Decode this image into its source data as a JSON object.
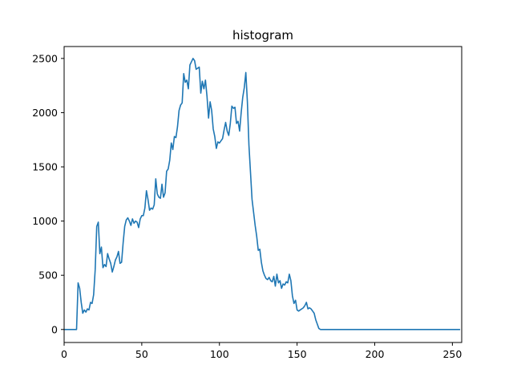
{
  "chart_data": {
    "type": "line",
    "title": "histogram",
    "xlabel": "",
    "ylabel": "",
    "xlim": [
      0,
      256
    ],
    "ylim": [
      -120,
      2610
    ],
    "xticks": [
      0,
      50,
      100,
      150,
      200,
      250
    ],
    "yticks": [
      0,
      500,
      1000,
      1500,
      2000,
      2500
    ],
    "grid": false,
    "color": "#1f77b4",
    "series": [
      {
        "points": [
          [
            0,
            0
          ],
          [
            8,
            0
          ],
          [
            9,
            430
          ],
          [
            10,
            380
          ],
          [
            11,
            250
          ],
          [
            12,
            150
          ],
          [
            13,
            180
          ],
          [
            14,
            160
          ],
          [
            15,
            190
          ],
          [
            16,
            180
          ],
          [
            17,
            250
          ],
          [
            18,
            240
          ],
          [
            19,
            320
          ],
          [
            20,
            550
          ],
          [
            21,
            950
          ],
          [
            22,
            990
          ],
          [
            23,
            700
          ],
          [
            24,
            760
          ],
          [
            25,
            570
          ],
          [
            26,
            600
          ],
          [
            27,
            580
          ],
          [
            28,
            700
          ],
          [
            29,
            650
          ],
          [
            30,
            610
          ],
          [
            31,
            530
          ],
          [
            32,
            580
          ],
          [
            33,
            640
          ],
          [
            34,
            670
          ],
          [
            35,
            720
          ],
          [
            36,
            610
          ],
          [
            37,
            620
          ],
          [
            38,
            800
          ],
          [
            39,
            950
          ],
          [
            40,
            1010
          ],
          [
            41,
            1030
          ],
          [
            42,
            1000
          ],
          [
            43,
            960
          ],
          [
            44,
            1020
          ],
          [
            45,
            980
          ],
          [
            46,
            1000
          ],
          [
            47,
            990
          ],
          [
            48,
            940
          ],
          [
            49,
            1020
          ],
          [
            50,
            1050
          ],
          [
            51,
            1050
          ],
          [
            52,
            1120
          ],
          [
            53,
            1280
          ],
          [
            54,
            1200
          ],
          [
            55,
            1100
          ],
          [
            56,
            1120
          ],
          [
            57,
            1110
          ],
          [
            58,
            1150
          ],
          [
            59,
            1390
          ],
          [
            60,
            1250
          ],
          [
            61,
            1220
          ],
          [
            62,
            1210
          ],
          [
            63,
            1340
          ],
          [
            64,
            1220
          ],
          [
            65,
            1260
          ],
          [
            66,
            1460
          ],
          [
            67,
            1480
          ],
          [
            68,
            1560
          ],
          [
            69,
            1720
          ],
          [
            70,
            1660
          ],
          [
            71,
            1780
          ],
          [
            72,
            1770
          ],
          [
            73,
            1870
          ],
          [
            74,
            2020
          ],
          [
            75,
            2070
          ],
          [
            76,
            2090
          ],
          [
            77,
            2360
          ],
          [
            78,
            2280
          ],
          [
            79,
            2300
          ],
          [
            80,
            2220
          ],
          [
            81,
            2440
          ],
          [
            82,
            2470
          ],
          [
            83,
            2500
          ],
          [
            84,
            2480
          ],
          [
            85,
            2400
          ],
          [
            86,
            2410
          ],
          [
            87,
            2420
          ],
          [
            88,
            2180
          ],
          [
            89,
            2290
          ],
          [
            90,
            2220
          ],
          [
            91,
            2300
          ],
          [
            92,
            2150
          ],
          [
            93,
            1950
          ],
          [
            94,
            2100
          ],
          [
            95,
            2020
          ],
          [
            96,
            1850
          ],
          [
            97,
            1780
          ],
          [
            98,
            1670
          ],
          [
            99,
            1730
          ],
          [
            100,
            1720
          ],
          [
            101,
            1740
          ],
          [
            102,
            1760
          ],
          [
            103,
            1840
          ],
          [
            104,
            1910
          ],
          [
            105,
            1830
          ],
          [
            106,
            1790
          ],
          [
            107,
            1900
          ],
          [
            108,
            2060
          ],
          [
            109,
            2040
          ],
          [
            110,
            2050
          ],
          [
            111,
            1900
          ],
          [
            112,
            1920
          ],
          [
            113,
            1830
          ],
          [
            114,
            2000
          ],
          [
            115,
            2140
          ],
          [
            116,
            2230
          ],
          [
            117,
            2370
          ],
          [
            118,
            2100
          ],
          [
            119,
            1700
          ],
          [
            120,
            1450
          ],
          [
            121,
            1200
          ],
          [
            122,
            1080
          ],
          [
            123,
            960
          ],
          [
            124,
            860
          ],
          [
            125,
            730
          ],
          [
            126,
            740
          ],
          [
            127,
            620
          ],
          [
            128,
            540
          ],
          [
            129,
            500
          ],
          [
            130,
            470
          ],
          [
            131,
            460
          ],
          [
            132,
            480
          ],
          [
            133,
            450
          ],
          [
            134,
            440
          ],
          [
            135,
            490
          ],
          [
            136,
            400
          ],
          [
            137,
            510
          ],
          [
            138,
            430
          ],
          [
            139,
            450
          ],
          [
            140,
            380
          ],
          [
            141,
            420
          ],
          [
            142,
            410
          ],
          [
            143,
            440
          ],
          [
            144,
            430
          ],
          [
            145,
            510
          ],
          [
            146,
            450
          ],
          [
            147,
            310
          ],
          [
            148,
            240
          ],
          [
            149,
            270
          ],
          [
            150,
            180
          ],
          [
            151,
            170
          ],
          [
            152,
            180
          ],
          [
            153,
            190
          ],
          [
            154,
            200
          ],
          [
            155,
            220
          ],
          [
            156,
            250
          ],
          [
            157,
            190
          ],
          [
            158,
            200
          ],
          [
            159,
            190
          ],
          [
            160,
            170
          ],
          [
            161,
            150
          ],
          [
            162,
            90
          ],
          [
            163,
            50
          ],
          [
            164,
            10
          ],
          [
            165,
            0
          ],
          [
            166,
            0
          ],
          [
            200,
            0
          ],
          [
            255,
            0
          ]
        ]
      }
    ]
  }
}
